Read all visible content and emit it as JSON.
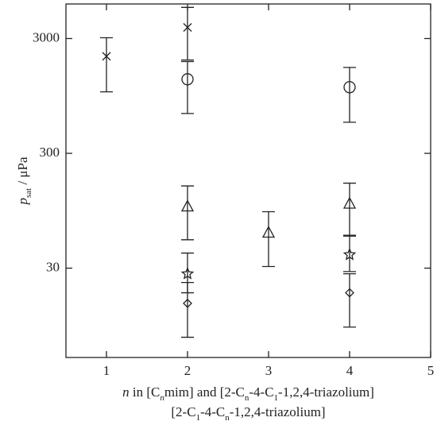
{
  "chart_data": {
    "type": "scatter",
    "yscale": "log",
    "color": "#222222",
    "ylabel": [
      {
        "text": "p",
        "italic": true
      },
      {
        "text": "sat",
        "sub": true
      },
      {
        "text": " / μPa"
      }
    ],
    "xlabel": [
      [
        {
          "text": "n",
          "italic": true
        },
        {
          "text": " in [C"
        },
        {
          "text": "n",
          "italic": true,
          "sub": true
        },
        {
          "text": "mim] and [2-C"
        },
        {
          "text": "n",
          "sub": true
        },
        {
          "text": "-4-C"
        },
        {
          "text": "1",
          "sub": true
        },
        {
          "text": "-1,2,4-triazolium]"
        }
      ],
      [
        {
          "text": "[2-C"
        },
        {
          "text": "1",
          "sub": true
        },
        {
          "text": "-4-C"
        },
        {
          "text": "n",
          "sub": true
        },
        {
          "text": "-1,2,4-triazolium]"
        }
      ]
    ],
    "xlim": [
      0.5,
      5
    ],
    "xticks": [
      1,
      2,
      3,
      4,
      5
    ],
    "ylim": [
      5,
      6000
    ],
    "yticks": [
      30,
      300,
      3000
    ],
    "series": [
      {
        "marker": "x",
        "x": [
          1,
          2
        ],
        "values": [
          2100,
          3750
        ],
        "ylow": [
          1030,
          1950
        ],
        "yhigh": [
          3050,
          5600
        ]
      },
      {
        "marker": "circle",
        "x": [
          2,
          4
        ],
        "values": [
          1325,
          1130
        ],
        "ylow": [
          667,
          560
        ],
        "yhigh": [
          1890,
          1680
        ]
      },
      {
        "marker": "triangle",
        "x": [
          2,
          3,
          4
        ],
        "values": [
          104,
          61.5,
          110
        ],
        "ylow": [
          53,
          31,
          57
        ],
        "yhigh": [
          156,
          93,
          165
        ]
      },
      {
        "marker": "star",
        "x": [
          2,
          4
        ],
        "values": [
          26.8,
          39.3
        ],
        "ylow": [
          18.3,
          28
        ],
        "yhigh": [
          40.6,
          58
        ]
      },
      {
        "marker": "diamond",
        "x": [
          2,
          4
        ],
        "values": [
          14.8,
          18.3
        ],
        "ylow": [
          7.5,
          9.2
        ],
        "yhigh": [
          22.5,
          26.8
        ]
      }
    ]
  }
}
